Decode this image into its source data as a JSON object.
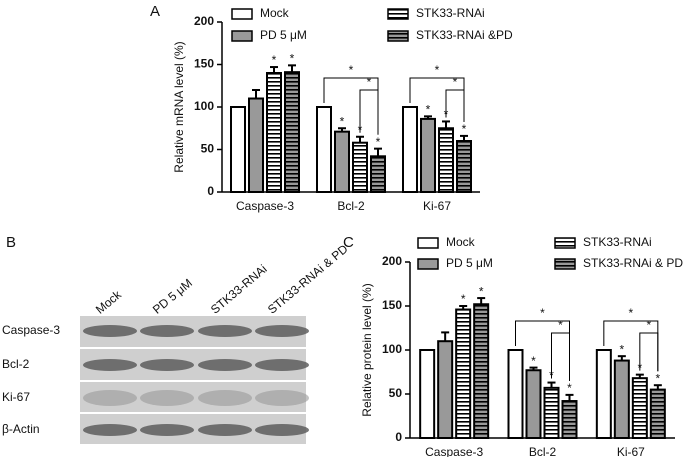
{
  "chart_data": [
    {
      "type": "bar",
      "panel": "A",
      "y_label": "Relative mRNA level (%)",
      "categories": [
        "Caspase-3",
        "Bcl-2",
        "Ki-67"
      ],
      "series": [
        {
          "name": "Mock",
          "color": "#ffffff",
          "hatch": false,
          "values": [
            100,
            100,
            100
          ],
          "errors": [
            0,
            0,
            0
          ],
          "significance": [
            null,
            null,
            null
          ]
        },
        {
          "name": "PD 5 μM",
          "color": "#999999",
          "hatch": false,
          "values": [
            110,
            71,
            86
          ],
          "errors": [
            10,
            4,
            3
          ],
          "significance": [
            null,
            "*",
            "*"
          ]
        },
        {
          "name": "STK33-RNAi",
          "color": "#ffffff",
          "hatch": true,
          "values": [
            140,
            58,
            75
          ],
          "errors": [
            7,
            7,
            8
          ],
          "significance": [
            "*",
            "*",
            "*"
          ]
        },
        {
          "name": "STK33-RNAi &PD",
          "color": "#999999",
          "hatch": true,
          "values": [
            141,
            42,
            60
          ],
          "errors": [
            8,
            9,
            6
          ],
          "significance": [
            "*",
            "*",
            "*"
          ]
        }
      ],
      "brackets": [
        {
          "category": "Bcl-2",
          "from": "Mock",
          "to": "STK33-RNAi &PD",
          "label": "*"
        },
        {
          "category": "Bcl-2",
          "from": "STK33-RNAi",
          "to": "STK33-RNAi &PD",
          "label": "*"
        },
        {
          "category": "Ki-67",
          "from": "Mock",
          "to": "STK33-RNAi &PD",
          "label": "*"
        },
        {
          "category": "Ki-67",
          "from": "STK33-RNAi",
          "to": "STK33-RNAi &PD",
          "label": "*"
        }
      ],
      "ylim": [
        0,
        200
      ],
      "yticks": [
        0,
        50,
        100,
        150,
        200
      ]
    },
    {
      "type": "bar",
      "panel": "C",
      "y_label": "Relative protein level (%)",
      "categories": [
        "Caspase-3",
        "Bcl-2",
        "Ki-67"
      ],
      "series": [
        {
          "name": "Mock",
          "color": "#ffffff",
          "hatch": false,
          "values": [
            100,
            100,
            100
          ],
          "errors": [
            0,
            0,
            0
          ],
          "significance": [
            null,
            null,
            null
          ]
        },
        {
          "name": "PD 5 μM",
          "color": "#999999",
          "hatch": false,
          "values": [
            110,
            77,
            88
          ],
          "errors": [
            10,
            3,
            5
          ],
          "significance": [
            null,
            "*",
            "*"
          ]
        },
        {
          "name": "STK33-RNAi",
          "color": "#ffffff",
          "hatch": true,
          "values": [
            146,
            57,
            68
          ],
          "errors": [
            4,
            6,
            4
          ],
          "significance": [
            "*",
            "*",
            "*"
          ]
        },
        {
          "name": "STK33-RNAi & PD",
          "color": "#999999",
          "hatch": true,
          "values": [
            152,
            42,
            55
          ],
          "errors": [
            7,
            7,
            5
          ],
          "significance": [
            "*",
            "*",
            "*"
          ]
        }
      ],
      "brackets": [
        {
          "category": "Bcl-2",
          "from": "Mock",
          "to": "STK33-RNAi & PD",
          "label": "*"
        },
        {
          "category": "Bcl-2",
          "from": "STK33-RNAi",
          "to": "STK33-RNAi & PD",
          "label": "*"
        },
        {
          "category": "Ki-67",
          "from": "Mock",
          "to": "STK33-RNAi & PD",
          "label": "*"
        },
        {
          "category": "Ki-67",
          "from": "STK33-RNAi",
          "to": "STK33-RNAi & PD",
          "label": "*"
        }
      ],
      "ylim": [
        0,
        200
      ],
      "yticks": [
        0,
        50,
        100,
        150,
        200
      ]
    }
  ],
  "blot": {
    "panel": "B",
    "lanes": [
      "Mock",
      "PD 5 μM",
      "STK33-RNAi",
      "STK33-RNAi & PD"
    ],
    "rows": [
      "Caspase-3",
      "Bcl-2",
      "Ki-67",
      "β-Actin"
    ]
  }
}
